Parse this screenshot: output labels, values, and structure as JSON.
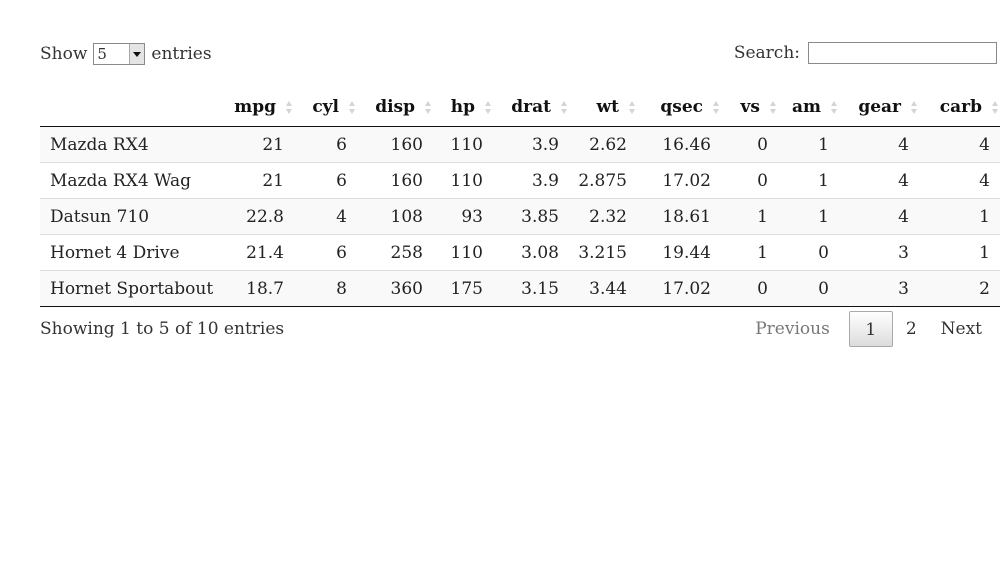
{
  "length_menu": {
    "prefix": "Show",
    "selected": "5",
    "suffix": "entries"
  },
  "search": {
    "label": "Search:",
    "value": ""
  },
  "table": {
    "columns": [
      "",
      "mpg",
      "cyl",
      "disp",
      "hp",
      "drat",
      "wt",
      "qsec",
      "vs",
      "am",
      "gear",
      "carb"
    ],
    "rows": [
      [
        "Mazda RX4",
        "21",
        "6",
        "160",
        "110",
        "3.9",
        "2.62",
        "16.46",
        "0",
        "1",
        "4",
        "4"
      ],
      [
        "Mazda RX4 Wag",
        "21",
        "6",
        "160",
        "110",
        "3.9",
        "2.875",
        "17.02",
        "0",
        "1",
        "4",
        "4"
      ],
      [
        "Datsun 710",
        "22.8",
        "4",
        "108",
        "93",
        "3.85",
        "2.32",
        "18.61",
        "1",
        "1",
        "4",
        "1"
      ],
      [
        "Hornet 4 Drive",
        "21.4",
        "6",
        "258",
        "110",
        "3.08",
        "3.215",
        "19.44",
        "1",
        "0",
        "3",
        "1"
      ],
      [
        "Hornet Sportabout",
        "18.7",
        "8",
        "360",
        "175",
        "3.15",
        "3.44",
        "17.02",
        "0",
        "0",
        "3",
        "2"
      ]
    ]
  },
  "info": "Showing 1 to 5 of 10 entries",
  "pagination": {
    "previous": "Previous",
    "pages": [
      "1",
      "2"
    ],
    "current": "1",
    "next": "Next"
  }
}
